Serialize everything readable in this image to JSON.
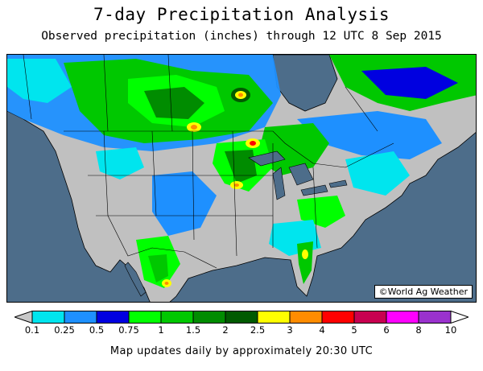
{
  "title": "7-day Precipitation Analysis",
  "subtitle": "Observed precipitation (inches) through 12 UTC 8 Sep 2015",
  "credit": "©World Ag Weather",
  "footer": "Map updates daily by approximately 20:30 UTC",
  "legend": {
    "labels": [
      "0.1",
      "0.25",
      "0.5",
      "0.75",
      "1",
      "1.5",
      "2",
      "2.5",
      "3",
      "4",
      "5",
      "6",
      "8",
      "10"
    ],
    "colors": [
      "#c8c8c8",
      "#00e5ee",
      "#1e90ff",
      "#0000e0",
      "#00ff00",
      "#00c800",
      "#008c00",
      "#005a00",
      "#ffff00",
      "#ff8c00",
      "#ff0000",
      "#c80050",
      "#ff00ff",
      "#9a32cd",
      "#ffffff"
    ]
  },
  "map_colors": {
    "ocean": "#4d6d8a",
    "dry_land": "#c0c0c0",
    "boundaries": "#000000"
  }
}
